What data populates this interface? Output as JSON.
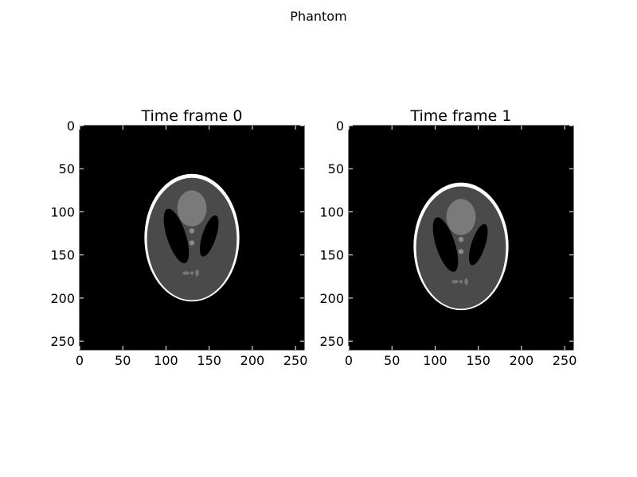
{
  "figure": {
    "suptitle": "Phantom"
  },
  "chart_data": [
    {
      "type": "heatmap",
      "title": "Time frame 0",
      "colormap": "gray",
      "background": "#000000",
      "xlim": [
        0,
        260
      ],
      "ylim": [
        260,
        0
      ],
      "xticks": [
        0,
        50,
        100,
        150,
        200,
        250
      ],
      "yticks": [
        0,
        50,
        100,
        150,
        200,
        250
      ],
      "xtick_labels": [
        "0",
        "50",
        "100",
        "150",
        "200",
        "250"
      ],
      "ytick_labels": [
        "0",
        "50",
        "100",
        "150",
        "200",
        "250"
      ],
      "phantom_center": [
        130,
        130
      ]
    },
    {
      "type": "heatmap",
      "title": "Time frame 1",
      "colormap": "gray",
      "background": "#000000",
      "xlim": [
        0,
        260
      ],
      "ylim": [
        260,
        0
      ],
      "xticks": [
        0,
        50,
        100,
        150,
        200,
        250
      ],
      "yticks": [
        0,
        50,
        100,
        150,
        200,
        250
      ],
      "xtick_labels": [
        "0",
        "50",
        "100",
        "150",
        "200",
        "250"
      ],
      "ytick_labels": [
        "0",
        "50",
        "100",
        "150",
        "200",
        "250"
      ],
      "phantom_center": [
        130,
        140
      ]
    }
  ]
}
